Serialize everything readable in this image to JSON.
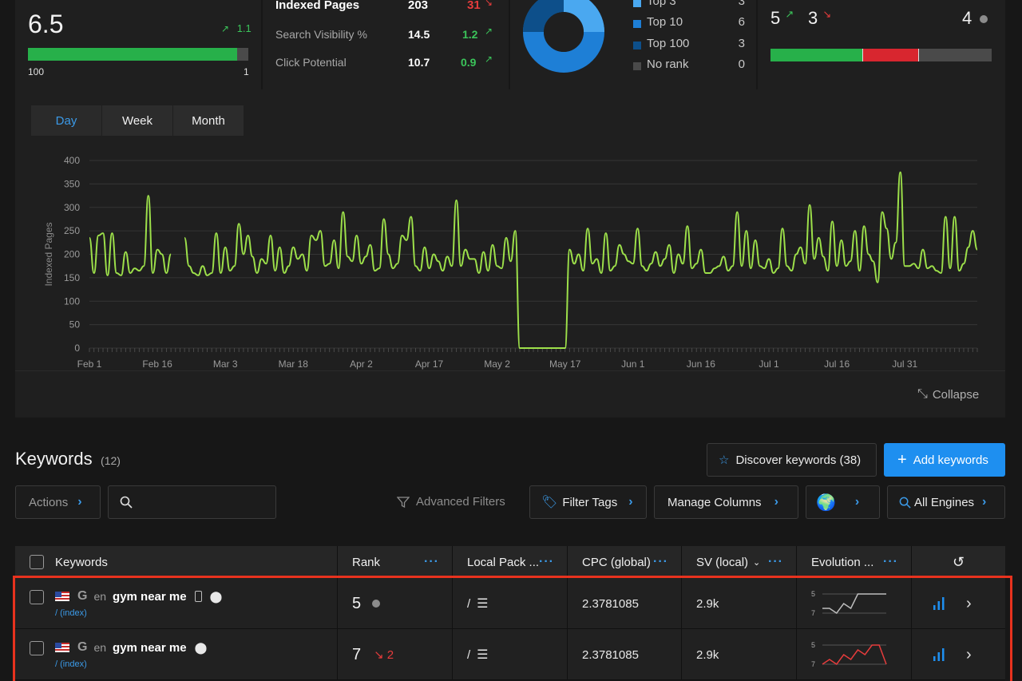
{
  "score_card": {
    "value": "6.5",
    "change": "1.1",
    "bar_fill_fraction": 0.95,
    "bar_left_label": "100",
    "bar_right_label": "1"
  },
  "metrics_card": {
    "rows": [
      {
        "label": "Indexed Pages",
        "value": "203",
        "change": "31",
        "direction": "down"
      },
      {
        "label": "Search Visibility %",
        "value": "14.5",
        "change": "1.2",
        "direction": "up"
      },
      {
        "label": "Click Potential",
        "value": "10.7",
        "change": "0.9",
        "direction": "up"
      }
    ]
  },
  "rank_card": {
    "legend": [
      {
        "label": "Top 3",
        "value": "3",
        "color": "#4aa8f0"
      },
      {
        "label": "Top 10",
        "value": "6",
        "color": "#1e7fd6"
      },
      {
        "label": "Top 100",
        "value": "3",
        "color": "#0d4f8a"
      },
      {
        "label": "No rank",
        "value": "0",
        "color": "#4a4a4a"
      }
    ]
  },
  "movement_card": {
    "up_count": "5",
    "down_count": "3",
    "neutral_count": "4",
    "green_fraction": 0.42,
    "red_fraction": 0.25
  },
  "chart_controls": {
    "day": "Day",
    "week": "Week",
    "month": "Month",
    "collapse": "Collapse"
  },
  "chart_data": {
    "type": "line",
    "ylabel": "Indexed Pages",
    "ylim": [
      0,
      400
    ],
    "yticks": [
      "400",
      "350",
      "300",
      "250",
      "200",
      "150",
      "100",
      "50",
      "0"
    ],
    "xticks": [
      "Feb 1",
      "Feb 16",
      "Mar 3",
      "Mar 18",
      "Apr 2",
      "Apr 17",
      "May 2",
      "May 17",
      "Jun 1",
      "Jun 16",
      "Jul 1",
      "Jul 16",
      "Jul 31"
    ],
    "series": [
      {
        "values": [
          235,
          160,
          240,
          245,
          155,
          245,
          160,
          155,
          205,
          160,
          170,
          165,
          175,
          325,
          160,
          210,
          200,
          160,
          200,
          null,
          null,
          235,
          175,
          160,
          155,
          175,
          155,
          160,
          245,
          160,
          215,
          165,
          175,
          265,
          200,
          240,
          195,
          160,
          190,
          180,
          240,
          165,
          215,
          160,
          175,
          215,
          190,
          200,
          165,
          240,
          230,
          250,
          175,
          180,
          230,
          170,
          290,
          195,
          185,
          240,
          180,
          195,
          220,
          165,
          170,
          275,
          200,
          170,
          180,
          240,
          230,
          280,
          175,
          165,
          215,
          170,
          200,
          185,
          165,
          195,
          175,
          315,
          175,
          210,
          190,
          190,
          160,
          205,
          165,
          220,
          175,
          170,
          235,
          185,
          250,
          0,
          0,
          0,
          0,
          0,
          0,
          0,
          0,
          0,
          0,
          0,
          210,
          180,
          200,
          165,
          255,
          180,
          190,
          160,
          245,
          165,
          175,
          220,
          200,
          185,
          180,
          255,
          175,
          165,
          180,
          205,
          175,
          190,
          220,
          160,
          200,
          180,
          260,
          170,
          180,
          210,
          160,
          160,
          170,
          175,
          195,
          165,
          175,
          290,
          175,
          250,
          170,
          230,
          175,
          170,
          190,
          160,
          170,
          255,
          175,
          165,
          200,
          215,
          180,
          305,
          190,
          235,
          195,
          165,
          270,
          175,
          230,
          175,
          185,
          250,
          165,
          260,
          200,
          185,
          140,
          290,
          255,
          190,
          225,
          375,
          175,
          175,
          180,
          170,
          210,
          170,
          175,
          165,
          160,
          280,
          170,
          280,
          165,
          180,
          215,
          250,
          210
        ]
      }
    ]
  },
  "keywords_section": {
    "title": "Keywords",
    "count": "(12)",
    "discover_button": "Discover keywords (38)",
    "add_button": "Add keywords",
    "actions_label": "Actions",
    "search_placeholder": "",
    "advanced_filters": "Advanced Filters",
    "filter_tags": "Filter Tags",
    "manage_columns": "Manage Columns",
    "all_engines": "All Engines",
    "globe": "🌍"
  },
  "table": {
    "headers": {
      "keywords": "Keywords",
      "rank": "Rank",
      "local_pack": "Local Pack ...",
      "cpc": "CPC (global)",
      "sv": "SV (local)",
      "evolution": "Evolution ..."
    },
    "rows": [
      {
        "lang": "en",
        "keyword": "gym near me",
        "url": "/ (index)",
        "rank": "5",
        "rank_change": "",
        "local_pack": "/",
        "cpc": "2.3781085",
        "sv": "2.9k",
        "spark_top": "5",
        "spark_bottom": "7",
        "spark_values": [
          6.5,
          6.5,
          7,
          6,
          6.5,
          5,
          5,
          5,
          5,
          5
        ],
        "spark_color": "#bdbdbd",
        "has_mobile": true
      },
      {
        "lang": "en",
        "keyword": "gym near me",
        "url": "/ (index)",
        "rank": "7",
        "rank_change": "2",
        "local_pack": "/",
        "cpc": "2.3781085",
        "sv": "2.9k",
        "spark_top": "5",
        "spark_bottom": "7",
        "spark_values": [
          7,
          6.5,
          7,
          6,
          6.5,
          5.5,
          6,
          5,
          5,
          7
        ],
        "spark_color": "#e63c3c",
        "has_mobile": false
      }
    ]
  }
}
